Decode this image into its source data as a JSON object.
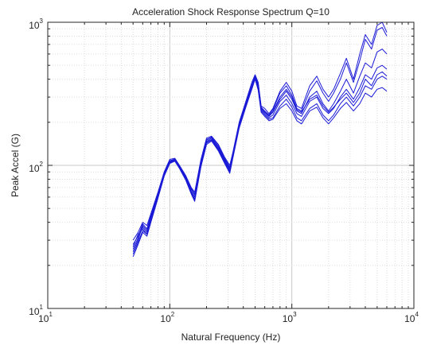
{
  "chart_data": {
    "type": "line",
    "title": "Acceleration Shock Response Spectrum Q=10",
    "xlabel": "Natural Frequency (Hz)",
    "ylabel": "Peak Accel (G)",
    "x_scale": "log",
    "y_scale": "log",
    "xlim": [
      10,
      10000
    ],
    "ylim": [
      10,
      1000
    ],
    "grid": true,
    "x_ticks": [
      {
        "base": "10",
        "exp": "1",
        "value": 10
      },
      {
        "base": "10",
        "exp": "2",
        "value": 100
      },
      {
        "base": "10",
        "exp": "3",
        "value": 1000
      },
      {
        "base": "10",
        "exp": "4",
        "value": 10000
      }
    ],
    "y_ticks": [
      {
        "base": "10",
        "exp": "1",
        "value": 10
      },
      {
        "base": "10",
        "exp": "2",
        "value": 100
      },
      {
        "base": "10",
        "exp": "3",
        "value": 1000
      }
    ],
    "series_color": "#1a1ad6",
    "x": [
      50,
      55,
      60,
      65,
      70,
      80,
      90,
      100,
      110,
      120,
      135,
      150,
      160,
      180,
      200,
      220,
      250,
      280,
      310,
      330,
      370,
      420,
      470,
      500,
      530,
      560,
      600,
      650,
      700,
      800,
      900,
      1000,
      1100,
      1200,
      1400,
      1600,
      1800,
      2000,
      2200,
      2500,
      2800,
      3200,
      3600,
      4000,
      4500,
      5000,
      5500,
      6000
    ],
    "series": [
      {
        "values": [
          30,
          34,
          40,
          38,
          46,
          65,
          90,
          110,
          112,
          100,
          85,
          70,
          65,
          110,
          155,
          160,
          140,
          115,
          100,
          125,
          200,
          280,
          380,
          430,
          380,
          260,
          250,
          230,
          250,
          330,
          380,
          330,
          260,
          250,
          360,
          420,
          340,
          300,
          340,
          440,
          560,
          400,
          600,
          820,
          700,
          950,
          1000,
          850
        ]
      },
      {
        "values": [
          27,
          33,
          36,
          33,
          44,
          64,
          88,
          107,
          111,
          99,
          83,
          68,
          62,
          106,
          150,
          158,
          135,
          112,
          95,
          122,
          195,
          275,
          360,
          420,
          370,
          255,
          240,
          225,
          245,
          320,
          360,
          310,
          250,
          240,
          330,
          390,
          320,
          280,
          320,
          400,
          520,
          380,
          540,
          760,
          650,
          880,
          920,
          800
        ]
      },
      {
        "values": [
          25,
          30,
          38,
          35,
          43,
          62,
          87,
          106,
          110,
          98,
          82,
          66,
          60,
          104,
          147,
          155,
          132,
          110,
          93,
          120,
          190,
          270,
          355,
          415,
          360,
          250,
          235,
          220,
          235,
          290,
          330,
          290,
          240,
          230,
          300,
          330,
          270,
          240,
          270,
          330,
          400,
          320,
          420,
          520,
          480,
          620,
          650,
          600
        ]
      },
      {
        "values": [
          26,
          31,
          37,
          34,
          42,
          61,
          86,
          105,
          109,
          97,
          81,
          65,
          58,
          102,
          145,
          152,
          130,
          108,
          92,
          118,
          188,
          265,
          350,
          410,
          350,
          245,
          230,
          215,
          225,
          280,
          310,
          270,
          230,
          220,
          280,
          300,
          250,
          230,
          250,
          300,
          340,
          290,
          350,
          430,
          400,
          480,
          500,
          470
        ]
      },
      {
        "values": [
          24,
          29,
          35,
          33,
          41,
          60,
          85,
          104,
          108,
          96,
          80,
          64,
          57,
          100,
          143,
          150,
          128,
          106,
          90,
          116,
          185,
          260,
          345,
          405,
          340,
          240,
          225,
          210,
          215,
          260,
          290,
          255,
          215,
          205,
          250,
          270,
          225,
          205,
          225,
          270,
          300,
          260,
          300,
          360,
          340,
          400,
          420,
          400
        ]
      },
      {
        "values": [
          28,
          32,
          39,
          36,
          45,
          63,
          89,
          108,
          110,
          98,
          84,
          69,
          63,
          108,
          152,
          157,
          137,
          113,
          97,
          123,
          193,
          272,
          365,
          425,
          375,
          252,
          238,
          222,
          238,
          300,
          340,
          300,
          245,
          235,
          290,
          310,
          260,
          235,
          255,
          290,
          320,
          275,
          320,
          400,
          360,
          430,
          450,
          420
        ]
      },
      {
        "values": [
          23,
          28,
          34,
          32,
          40,
          59,
          84,
          103,
          107,
          95,
          79,
          63,
          56,
          98,
          140,
          148,
          126,
          104,
          88,
          114,
          182,
          255,
          340,
          400,
          335,
          235,
          220,
          205,
          210,
          250,
          270,
          240,
          205,
          195,
          240,
          255,
          215,
          195,
          215,
          250,
          275,
          240,
          270,
          320,
          300,
          340,
          350,
          330
        ]
      }
    ]
  }
}
